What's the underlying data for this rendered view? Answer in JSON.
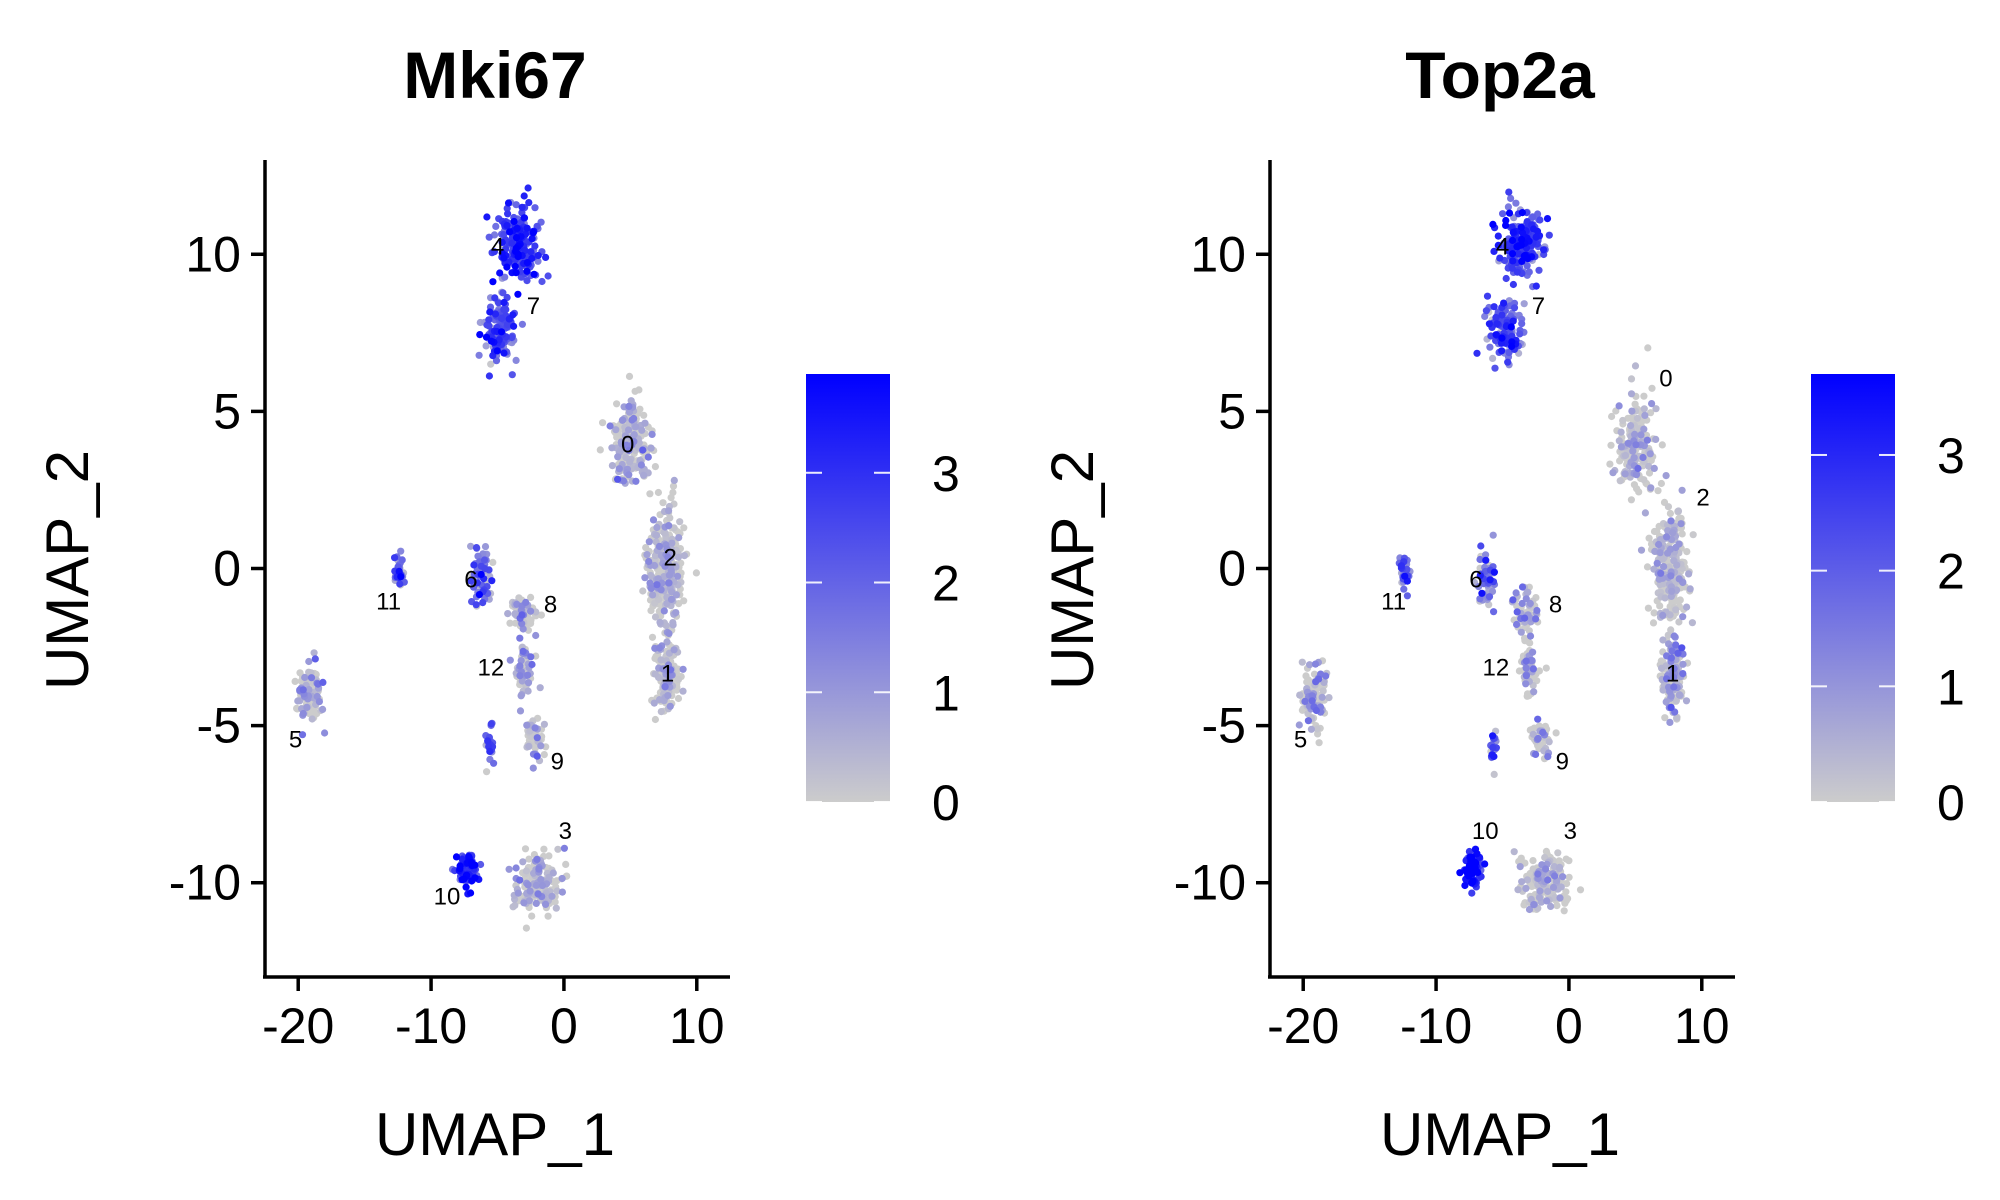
{
  "chart_data": [
    {
      "type": "scatter",
      "title": "Mki67",
      "xlabel": "UMAP_1",
      "ylabel": "UMAP_2",
      "xlim": [
        -22.5,
        12.5
      ],
      "ylim": [
        -13,
        13
      ],
      "xticks": [
        -20,
        -10,
        0,
        10
      ],
      "xtick_labels": [
        "-20",
        "-10",
        "0",
        "10"
      ],
      "yticks": [
        -10,
        -5,
        0,
        5,
        10
      ],
      "ytick_labels": [
        "-10",
        "-5",
        "0",
        "5",
        "10"
      ],
      "grid": false,
      "legend": "right",
      "colorscale": {
        "low": "#cccccc",
        "high": "#0000ff",
        "min": 0,
        "max": 3.9,
        "ticks": [
          0,
          1,
          2,
          3
        ],
        "tick_labels": [
          "0",
          "1",
          "2",
          "3"
        ]
      },
      "cluster_labels": [
        {
          "text": "4",
          "x": -5.0,
          "y": 10.2
        },
        {
          "text": "7",
          "x": -2.3,
          "y": 8.3
        },
        {
          "text": "0",
          "x": 4.8,
          "y": 3.9
        },
        {
          "text": "2",
          "x": 8.0,
          "y": 0.3
        },
        {
          "text": "6",
          "x": -7.0,
          "y": -0.4
        },
        {
          "text": "11",
          "x": -13.2,
          "y": -1.1
        },
        {
          "text": "8",
          "x": -1.0,
          "y": -1.2
        },
        {
          "text": "12",
          "x": -5.5,
          "y": -3.2
        },
        {
          "text": "1",
          "x": 7.8,
          "y": -3.4
        },
        {
          "text": "5",
          "x": -20.2,
          "y": -5.5
        },
        {
          "text": "9",
          "x": -0.5,
          "y": -6.2
        },
        {
          "text": "3",
          "x": 0.1,
          "y": -8.4
        },
        {
          "text": "10",
          "x": -8.8,
          "y": -10.5
        }
      ],
      "clusters": [
        {
          "id": "4",
          "cx": -3.5,
          "cy": 10.3,
          "sx": 1.4,
          "sy": 1.0,
          "n": 220,
          "expr": 2.6,
          "expr_sd": 0.9
        },
        {
          "id": "7",
          "cx": -4.8,
          "cy": 7.6,
          "sx": 1.1,
          "sy": 0.9,
          "n": 140,
          "expr": 2.2,
          "expr_sd": 0.9
        },
        {
          "id": "0",
          "cx": 5.0,
          "cy": 4.0,
          "sx": 1.3,
          "sy": 1.3,
          "n": 200,
          "expr": 0.4,
          "expr_sd": 0.6
        },
        {
          "id": "2",
          "cx": 7.6,
          "cy": 0.0,
          "sx": 1.2,
          "sy": 1.8,
          "n": 280,
          "expr": 0.3,
          "expr_sd": 0.5
        },
        {
          "id": "1",
          "cx": 7.8,
          "cy": -3.4,
          "sx": 0.9,
          "sy": 1.0,
          "n": 140,
          "expr": 0.4,
          "expr_sd": 0.6
        },
        {
          "id": "6",
          "cx": -6.2,
          "cy": -0.3,
          "sx": 0.6,
          "sy": 0.9,
          "n": 70,
          "expr": 1.6,
          "expr_sd": 0.9
        },
        {
          "id": "11",
          "cx": -12.4,
          "cy": -0.1,
          "sx": 0.35,
          "sy": 0.5,
          "n": 40,
          "expr": 1.3,
          "expr_sd": 1.1
        },
        {
          "id": "8",
          "cx": -3.2,
          "cy": -1.5,
          "sx": 0.8,
          "sy": 0.6,
          "n": 60,
          "expr": 0.6,
          "expr_sd": 0.8
        },
        {
          "id": "12",
          "cx": -3.0,
          "cy": -3.2,
          "sx": 0.7,
          "sy": 0.8,
          "n": 60,
          "expr": 0.7,
          "expr_sd": 0.8
        },
        {
          "id": "9",
          "cx": -2.2,
          "cy": -5.4,
          "sx": 0.7,
          "sy": 0.6,
          "n": 50,
          "expr": 0.5,
          "expr_sd": 0.7
        },
        {
          "id": "9b",
          "cx": -5.6,
          "cy": -5.6,
          "sx": 0.3,
          "sy": 0.5,
          "n": 25,
          "expr": 1.8,
          "expr_sd": 0.9
        },
        {
          "id": "5",
          "cx": -19.1,
          "cy": -4.1,
          "sx": 0.8,
          "sy": 0.9,
          "n": 120,
          "expr": 0.4,
          "expr_sd": 0.7
        },
        {
          "id": "3",
          "cx": -2.0,
          "cy": -10.0,
          "sx": 1.7,
          "sy": 0.8,
          "n": 170,
          "expr": 0.4,
          "expr_sd": 0.6
        },
        {
          "id": "10",
          "cx": -7.3,
          "cy": -9.6,
          "sx": 0.7,
          "sy": 0.5,
          "n": 80,
          "expr": 2.8,
          "expr_sd": 0.8
        }
      ]
    },
    {
      "type": "scatter",
      "title": "Top2a",
      "xlabel": "UMAP_1",
      "ylabel": "UMAP_2",
      "xlim": [
        -22.5,
        12.5
      ],
      "ylim": [
        -13,
        13
      ],
      "xticks": [
        -20,
        -10,
        0,
        10
      ],
      "xtick_labels": [
        "-20",
        "-10",
        "0",
        "10"
      ],
      "yticks": [
        -10,
        -5,
        0,
        5,
        10
      ],
      "ytick_labels": [
        "-10",
        "-5",
        "0",
        "5",
        "10"
      ],
      "grid": false,
      "legend": "right",
      "colorscale": {
        "low": "#cccccc",
        "high": "#0000ff",
        "min": 0,
        "max": 3.7,
        "ticks": [
          0,
          1,
          2,
          3
        ],
        "tick_labels": [
          "0",
          "1",
          "2",
          "3"
        ]
      },
      "cluster_labels": [
        {
          "text": "4",
          "x": -5.0,
          "y": 10.2
        },
        {
          "text": "7",
          "x": -2.3,
          "y": 8.3
        },
        {
          "text": "0",
          "x": 7.3,
          "y": 6.0
        },
        {
          "text": "2",
          "x": 10.1,
          "y": 2.2
        },
        {
          "text": "6",
          "x": -7.0,
          "y": -0.4
        },
        {
          "text": "11",
          "x": -13.2,
          "y": -1.1
        },
        {
          "text": "8",
          "x": -1.0,
          "y": -1.2
        },
        {
          "text": "12",
          "x": -5.5,
          "y": -3.2
        },
        {
          "text": "1",
          "x": 7.8,
          "y": -3.4
        },
        {
          "text": "5",
          "x": -20.2,
          "y": -5.5
        },
        {
          "text": "9",
          "x": -0.5,
          "y": -6.2
        },
        {
          "text": "3",
          "x": 0.1,
          "y": -8.4
        },
        {
          "text": "10",
          "x": -6.3,
          "y": -8.4
        }
      ],
      "clusters": [
        {
          "id": "4",
          "cx": -3.5,
          "cy": 10.3,
          "sx": 1.4,
          "sy": 1.0,
          "n": 220,
          "expr": 2.3,
          "expr_sd": 1.0
        },
        {
          "id": "7",
          "cx": -4.8,
          "cy": 7.6,
          "sx": 1.1,
          "sy": 0.9,
          "n": 140,
          "expr": 1.8,
          "expr_sd": 1.0
        },
        {
          "id": "0",
          "cx": 5.0,
          "cy": 4.0,
          "sx": 1.3,
          "sy": 1.3,
          "n": 200,
          "expr": 0.3,
          "expr_sd": 0.5
        },
        {
          "id": "2",
          "cx": 7.6,
          "cy": 0.0,
          "sx": 1.2,
          "sy": 1.8,
          "n": 280,
          "expr": 0.3,
          "expr_sd": 0.5
        },
        {
          "id": "1",
          "cx": 7.8,
          "cy": -3.4,
          "sx": 0.9,
          "sy": 1.0,
          "n": 140,
          "expr": 0.5,
          "expr_sd": 0.7
        },
        {
          "id": "6",
          "cx": -6.2,
          "cy": -0.3,
          "sx": 0.6,
          "sy": 0.9,
          "n": 70,
          "expr": 1.2,
          "expr_sd": 1.0
        },
        {
          "id": "11",
          "cx": -12.4,
          "cy": -0.1,
          "sx": 0.35,
          "sy": 0.5,
          "n": 40,
          "expr": 1.4,
          "expr_sd": 1.0
        },
        {
          "id": "8",
          "cx": -3.2,
          "cy": -1.5,
          "sx": 0.8,
          "sy": 0.6,
          "n": 60,
          "expr": 0.5,
          "expr_sd": 0.8
        },
        {
          "id": "12",
          "cx": -3.0,
          "cy": -3.2,
          "sx": 0.7,
          "sy": 0.8,
          "n": 60,
          "expr": 0.7,
          "expr_sd": 0.8
        },
        {
          "id": "9",
          "cx": -2.2,
          "cy": -5.4,
          "sx": 0.7,
          "sy": 0.6,
          "n": 50,
          "expr": 0.5,
          "expr_sd": 0.7
        },
        {
          "id": "9b",
          "cx": -5.6,
          "cy": -5.6,
          "sx": 0.3,
          "sy": 0.5,
          "n": 25,
          "expr": 1.4,
          "expr_sd": 1.0
        },
        {
          "id": "5",
          "cx": -19.1,
          "cy": -4.1,
          "sx": 0.8,
          "sy": 0.9,
          "n": 120,
          "expr": 0.5,
          "expr_sd": 0.8
        },
        {
          "id": "3",
          "cx": -2.0,
          "cy": -10.0,
          "sx": 1.7,
          "sy": 0.8,
          "n": 170,
          "expr": 0.3,
          "expr_sd": 0.5
        },
        {
          "id": "10",
          "cx": -7.3,
          "cy": -9.6,
          "sx": 0.7,
          "sy": 0.5,
          "n": 80,
          "expr": 3.0,
          "expr_sd": 0.7
        }
      ]
    }
  ]
}
